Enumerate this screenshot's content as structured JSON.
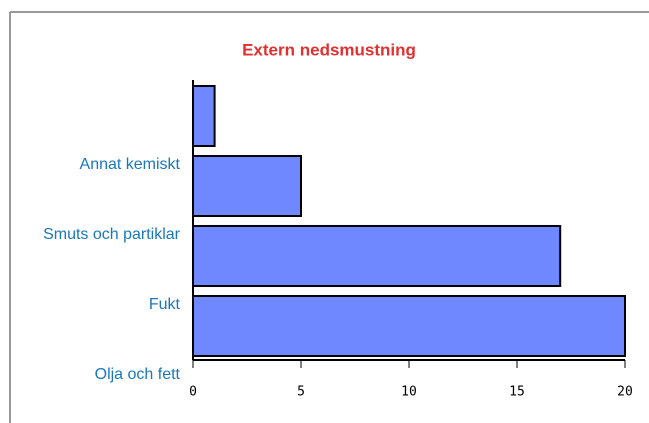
{
  "chart_data": {
    "type": "bar",
    "orientation": "horizontal",
    "title": "Extern nedsmustning",
    "categories": [
      "Olja och fett",
      "Fukt",
      "Smuts och partiklar",
      "Annat kemiskt"
    ],
    "values": [
      20,
      17,
      5,
      1
    ],
    "color": "#7088ff",
    "xlim": [
      0,
      20
    ],
    "xticks": [
      0,
      5,
      10,
      15,
      20
    ]
  }
}
